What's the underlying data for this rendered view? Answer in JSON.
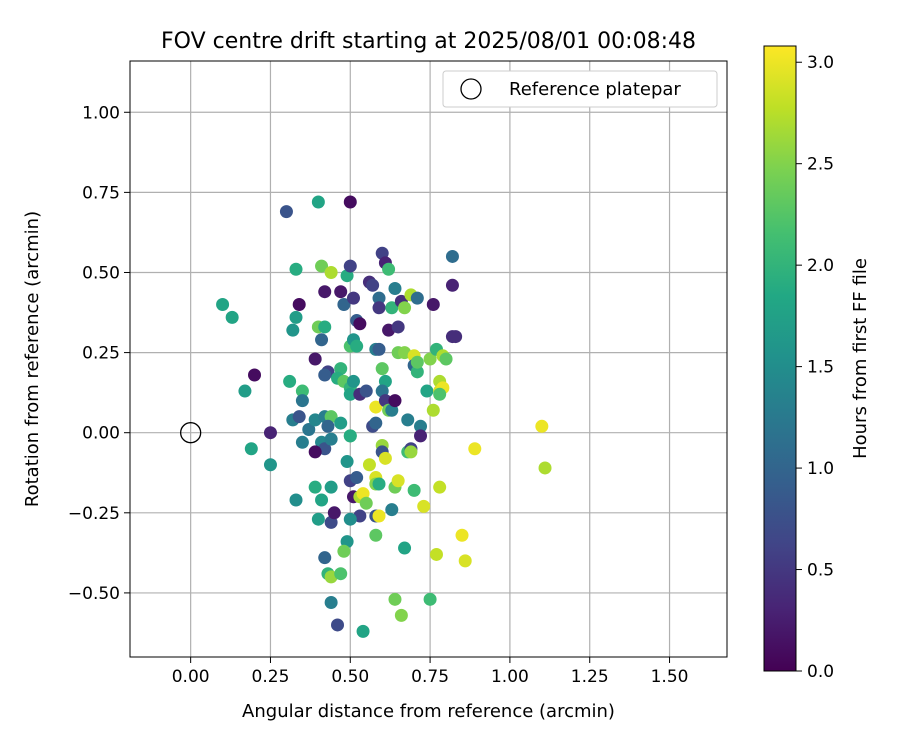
{
  "chart_data": {
    "type": "scatter",
    "title": "FOV centre drift starting at 2025/08/01 00:08:48",
    "xlabel": "Angular distance from reference (arcmin)",
    "ylabel": "Rotation from reference (arcmin)",
    "colorbar_label": "Hours from first FF file",
    "xlim": [
      -0.19,
      1.68
    ],
    "ylim": [
      -0.7,
      1.16
    ],
    "xticks": [
      0.0,
      0.25,
      0.5,
      0.75,
      1.0,
      1.25,
      1.5
    ],
    "xtick_labels": [
      "0.00",
      "0.25",
      "0.50",
      "0.75",
      "1.00",
      "1.25",
      "1.50"
    ],
    "yticks": [
      -0.5,
      -0.25,
      0.0,
      0.25,
      0.5,
      0.75,
      1.0
    ],
    "ytick_labels": [
      "−0.50",
      "−0.25",
      "0.00",
      "0.25",
      "0.50",
      "0.75",
      "1.00"
    ],
    "clim": [
      0,
      3.08
    ],
    "cticks": [
      0.0,
      0.5,
      1.0,
      1.5,
      2.0,
      2.5,
      3.0
    ],
    "ctick_labels": [
      "0.0",
      "0.5",
      "1.0",
      "1.5",
      "2.0",
      "2.5",
      "3.0"
    ],
    "colormap": "viridis",
    "grid": true,
    "legend": {
      "placement": "upper right",
      "entries": [
        "Reference platepar"
      ]
    },
    "reference_point": {
      "x": 0.0,
      "y": 0.0
    },
    "points": [
      {
        "x": 0.3,
        "y": 0.69,
        "c": 0.8
      },
      {
        "x": 0.4,
        "y": 0.72,
        "c": 1.8
      },
      {
        "x": 0.5,
        "y": 0.72,
        "c": 0.1
      },
      {
        "x": 0.1,
        "y": 0.4,
        "c": 1.8
      },
      {
        "x": 0.13,
        "y": 0.36,
        "c": 1.8
      },
      {
        "x": 0.2,
        "y": 0.18,
        "c": 0.1
      },
      {
        "x": 0.17,
        "y": 0.13,
        "c": 1.7
      },
      {
        "x": 0.19,
        "y": -0.05,
        "c": 1.8
      },
      {
        "x": 0.25,
        "y": 0.0,
        "c": 0.3
      },
      {
        "x": 0.25,
        "y": -0.1,
        "c": 1.6
      },
      {
        "x": 0.33,
        "y": 0.51,
        "c": 1.9
      },
      {
        "x": 0.33,
        "y": 0.36,
        "c": 1.7
      },
      {
        "x": 0.34,
        "y": 0.4,
        "c": 0.1
      },
      {
        "x": 0.32,
        "y": 0.32,
        "c": 1.6
      },
      {
        "x": 0.31,
        "y": 0.16,
        "c": 1.9
      },
      {
        "x": 0.35,
        "y": 0.13,
        "c": 2.1
      },
      {
        "x": 0.35,
        "y": 0.1,
        "c": 1.2
      },
      {
        "x": 0.32,
        "y": 0.04,
        "c": 1.3
      },
      {
        "x": 0.34,
        "y": 0.05,
        "c": 0.8
      },
      {
        "x": 0.35,
        "y": -0.03,
        "c": 1.3
      },
      {
        "x": 0.33,
        "y": -0.21,
        "c": 1.5
      },
      {
        "x": 0.41,
        "y": 0.52,
        "c": 2.4
      },
      {
        "x": 0.44,
        "y": 0.5,
        "c": 2.7
      },
      {
        "x": 0.42,
        "y": 0.44,
        "c": 0.2
      },
      {
        "x": 0.4,
        "y": 0.33,
        "c": 2.4
      },
      {
        "x": 0.42,
        "y": 0.33,
        "c": 1.9
      },
      {
        "x": 0.41,
        "y": 0.29,
        "c": 1.0
      },
      {
        "x": 0.39,
        "y": 0.23,
        "c": 0.2
      },
      {
        "x": 0.43,
        "y": 0.19,
        "c": 0.6
      },
      {
        "x": 0.42,
        "y": 0.18,
        "c": 0.9
      },
      {
        "x": 0.37,
        "y": 0.01,
        "c": 1.2
      },
      {
        "x": 0.39,
        "y": 0.04,
        "c": 1.4
      },
      {
        "x": 0.42,
        "y": 0.05,
        "c": 1.3
      },
      {
        "x": 0.44,
        "y": 0.05,
        "c": 2.3
      },
      {
        "x": 0.43,
        "y": 0.02,
        "c": 1.0
      },
      {
        "x": 0.41,
        "y": -0.03,
        "c": 1.4
      },
      {
        "x": 0.42,
        "y": -0.05,
        "c": 0.8
      },
      {
        "x": 0.44,
        "y": -0.02,
        "c": 1.3
      },
      {
        "x": 0.39,
        "y": -0.06,
        "c": 0.1
      },
      {
        "x": 0.39,
        "y": -0.17,
        "c": 1.9
      },
      {
        "x": 0.41,
        "y": -0.21,
        "c": 1.8
      },
      {
        "x": 0.44,
        "y": -0.17,
        "c": 1.7
      },
      {
        "x": 0.4,
        "y": -0.27,
        "c": 1.7
      },
      {
        "x": 0.44,
        "y": -0.28,
        "c": 0.7
      },
      {
        "x": 0.45,
        "y": -0.25,
        "c": 0.2
      },
      {
        "x": 0.42,
        "y": -0.39,
        "c": 1.0
      },
      {
        "x": 0.43,
        "y": -0.44,
        "c": 2.0
      },
      {
        "x": 0.44,
        "y": -0.45,
        "c": 2.6
      },
      {
        "x": 0.47,
        "y": -0.44,
        "c": 2.2
      },
      {
        "x": 0.44,
        "y": -0.53,
        "c": 1.3
      },
      {
        "x": 0.46,
        "y": -0.6,
        "c": 0.7
      },
      {
        "x": 0.47,
        "y": 0.44,
        "c": 0.2
      },
      {
        "x": 0.48,
        "y": 0.4,
        "c": 1.0
      },
      {
        "x": 0.49,
        "y": 0.49,
        "c": 1.9
      },
      {
        "x": 0.5,
        "y": 0.52,
        "c": 0.6
      },
      {
        "x": 0.51,
        "y": 0.42,
        "c": 0.5
      },
      {
        "x": 0.52,
        "y": 0.35,
        "c": 0.9
      },
      {
        "x": 0.53,
        "y": 0.34,
        "c": 0.1
      },
      {
        "x": 0.5,
        "y": 0.27,
        "c": 2.2
      },
      {
        "x": 0.51,
        "y": 0.29,
        "c": 1.6
      },
      {
        "x": 0.52,
        "y": 0.27,
        "c": 1.9
      },
      {
        "x": 0.47,
        "y": 0.2,
        "c": 2.0
      },
      {
        "x": 0.46,
        "y": 0.17,
        "c": 1.9
      },
      {
        "x": 0.48,
        "y": 0.16,
        "c": 2.3
      },
      {
        "x": 0.5,
        "y": 0.14,
        "c": 2.0
      },
      {
        "x": 0.5,
        "y": 0.12,
        "c": 1.8
      },
      {
        "x": 0.51,
        "y": 0.16,
        "c": 1.6
      },
      {
        "x": 0.53,
        "y": 0.12,
        "c": 0.4
      },
      {
        "x": 0.55,
        "y": 0.13,
        "c": 0.8
      },
      {
        "x": 0.47,
        "y": 0.03,
        "c": 1.7
      },
      {
        "x": 0.5,
        "y": -0.01,
        "c": 2.2
      },
      {
        "x": 0.5,
        "y": -0.01,
        "c": 1.9
      },
      {
        "x": 0.49,
        "y": -0.09,
        "c": 1.6
      },
      {
        "x": 0.5,
        "y": -0.15,
        "c": 0.6
      },
      {
        "x": 0.52,
        "y": -0.14,
        "c": 0.9
      },
      {
        "x": 0.51,
        "y": -0.2,
        "c": 0.2
      },
      {
        "x": 0.53,
        "y": -0.2,
        "c": 2.7
      },
      {
        "x": 0.54,
        "y": -0.19,
        "c": 3.0
      },
      {
        "x": 0.55,
        "y": -0.22,
        "c": 2.4
      },
      {
        "x": 0.53,
        "y": -0.26,
        "c": 0.6
      },
      {
        "x": 0.5,
        "y": -0.27,
        "c": 1.5
      },
      {
        "x": 0.49,
        "y": -0.34,
        "c": 1.6
      },
      {
        "x": 0.48,
        "y": -0.37,
        "c": 2.4
      },
      {
        "x": 0.54,
        "y": -0.62,
        "c": 1.8
      },
      {
        "x": 0.56,
        "y": 0.47,
        "c": 0.4
      },
      {
        "x": 0.57,
        "y": 0.46,
        "c": 0.6
      },
      {
        "x": 0.59,
        "y": 0.42,
        "c": 1.1
      },
      {
        "x": 0.59,
        "y": 0.39,
        "c": 0.5
      },
      {
        "x": 0.58,
        "y": 0.26,
        "c": 1.3
      },
      {
        "x": 0.59,
        "y": 0.26,
        "c": 0.9
      },
      {
        "x": 0.57,
        "y": 0.02,
        "c": 0.7
      },
      {
        "x": 0.58,
        "y": 0.03,
        "c": 1.0
      },
      {
        "x": 0.56,
        "y": -0.1,
        "c": 2.8
      },
      {
        "x": 0.58,
        "y": -0.14,
        "c": 2.9
      },
      {
        "x": 0.58,
        "y": -0.16,
        "c": 2.5
      },
      {
        "x": 0.59,
        "y": -0.16,
        "c": 1.9
      },
      {
        "x": 0.58,
        "y": -0.26,
        "c": 0.8
      },
      {
        "x": 0.59,
        "y": -0.26,
        "c": 3.0
      },
      {
        "x": 0.58,
        "y": -0.32,
        "c": 2.3
      },
      {
        "x": 0.58,
        "y": 0.08,
        "c": 3.0
      },
      {
        "x": 0.6,
        "y": 0.56,
        "c": 0.6
      },
      {
        "x": 0.61,
        "y": 0.53,
        "c": 0.3
      },
      {
        "x": 0.62,
        "y": 0.51,
        "c": 2.1
      },
      {
        "x": 0.62,
        "y": 0.32,
        "c": 0.2
      },
      {
        "x": 0.63,
        "y": 0.39,
        "c": 2.0
      },
      {
        "x": 0.64,
        "y": 0.45,
        "c": 1.3
      },
      {
        "x": 0.6,
        "y": 0.2,
        "c": 2.3
      },
      {
        "x": 0.61,
        "y": 0.16,
        "c": 1.8
      },
      {
        "x": 0.6,
        "y": 0.13,
        "c": 1.2
      },
      {
        "x": 0.61,
        "y": 0.1,
        "c": 0.5
      },
      {
        "x": 0.62,
        "y": 0.07,
        "c": 2.4
      },
      {
        "x": 0.63,
        "y": 0.07,
        "c": 1.3
      },
      {
        "x": 0.64,
        "y": 0.1,
        "c": 0.1
      },
      {
        "x": 0.6,
        "y": -0.04,
        "c": 2.6
      },
      {
        "x": 0.6,
        "y": -0.06,
        "c": 0.8
      },
      {
        "x": 0.61,
        "y": -0.08,
        "c": 2.9
      },
      {
        "x": 0.63,
        "y": -0.24,
        "c": 1.3
      },
      {
        "x": 0.64,
        "y": -0.17,
        "c": 2.4
      },
      {
        "x": 0.65,
        "y": -0.15,
        "c": 2.9
      },
      {
        "x": 0.64,
        "y": -0.52,
        "c": 2.4
      },
      {
        "x": 0.66,
        "y": -0.57,
        "c": 2.5
      },
      {
        "x": 0.66,
        "y": 0.41,
        "c": 0.4
      },
      {
        "x": 0.65,
        "y": 0.33,
        "c": 0.5
      },
      {
        "x": 0.67,
        "y": 0.39,
        "c": 2.5
      },
      {
        "x": 0.65,
        "y": 0.25,
        "c": 2.4
      },
      {
        "x": 0.67,
        "y": 0.25,
        "c": 2.5
      },
      {
        "x": 0.68,
        "y": 0.04,
        "c": 1.3
      },
      {
        "x": 0.68,
        "y": -0.06,
        "c": 2.1
      },
      {
        "x": 0.69,
        "y": -0.05,
        "c": 0.6
      },
      {
        "x": 0.69,
        "y": -0.06,
        "c": 2.6
      },
      {
        "x": 0.67,
        "y": -0.36,
        "c": 1.8
      },
      {
        "x": 0.69,
        "y": 0.43,
        "c": 2.7
      },
      {
        "x": 0.71,
        "y": 0.42,
        "c": 1.1
      },
      {
        "x": 0.7,
        "y": 0.24,
        "c": 2.9
      },
      {
        "x": 0.7,
        "y": 0.21,
        "c": 1.0
      },
      {
        "x": 0.71,
        "y": 0.19,
        "c": 2.0
      },
      {
        "x": 0.71,
        "y": 0.22,
        "c": 2.3
      },
      {
        "x": 0.72,
        "y": 0.02,
        "c": 1.3
      },
      {
        "x": 0.72,
        "y": -0.01,
        "c": 0.3
      },
      {
        "x": 0.7,
        "y": -0.18,
        "c": 2.1
      },
      {
        "x": 0.73,
        "y": -0.23,
        "c": 2.9
      },
      {
        "x": 0.75,
        "y": -0.52,
        "c": 2.1
      },
      {
        "x": 0.74,
        "y": 0.13,
        "c": 1.8
      },
      {
        "x": 0.75,
        "y": 0.23,
        "c": 2.5
      },
      {
        "x": 0.76,
        "y": 0.4,
        "c": 0.2
      },
      {
        "x": 0.77,
        "y": 0.26,
        "c": 2.0
      },
      {
        "x": 0.76,
        "y": 0.07,
        "c": 2.7
      },
      {
        "x": 0.77,
        "y": -0.38,
        "c": 2.8
      },
      {
        "x": 0.78,
        "y": -0.17,
        "c": 2.8
      },
      {
        "x": 0.78,
        "y": 0.16,
        "c": 2.7
      },
      {
        "x": 0.78,
        "y": 0.13,
        "c": 2.9
      },
      {
        "x": 0.79,
        "y": 0.14,
        "c": 3.0
      },
      {
        "x": 0.78,
        "y": 0.12,
        "c": 2.2
      },
      {
        "x": 0.79,
        "y": 0.24,
        "c": 2.7
      },
      {
        "x": 0.8,
        "y": 0.23,
        "c": 2.3
      },
      {
        "x": 0.82,
        "y": 0.55,
        "c": 1.1
      },
      {
        "x": 0.82,
        "y": 0.46,
        "c": 0.3
      },
      {
        "x": 0.82,
        "y": 0.3,
        "c": 0.4
      },
      {
        "x": 0.83,
        "y": 0.3,
        "c": 0.4
      },
      {
        "x": 0.85,
        "y": -0.32,
        "c": 3.0
      },
      {
        "x": 0.86,
        "y": -0.4,
        "c": 2.9
      },
      {
        "x": 0.89,
        "y": -0.05,
        "c": 3.0
      },
      {
        "x": 1.1,
        "y": 0.02,
        "c": 3.0
      },
      {
        "x": 1.11,
        "y": -0.11,
        "c": 2.7
      }
    ]
  }
}
